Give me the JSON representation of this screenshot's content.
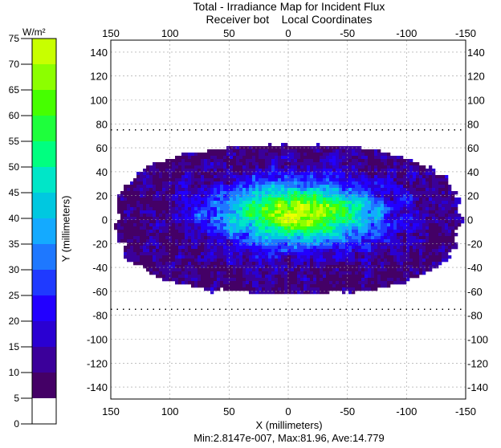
{
  "chart_data": {
    "type": "heatmap",
    "title": "Total - Irradiance Map for Incident Flux",
    "subtitle_receiver": "Receiver bot",
    "subtitle_coords": "Local Coordinates",
    "xlabel": "X (millimeters)",
    "ylabel": "Y (millimeters)",
    "xlim": [
      150,
      -150
    ],
    "ylim": [
      -150,
      150
    ],
    "x_ticks": [
      "150",
      "100",
      "50",
      "0",
      "-50",
      "-100",
      "-150"
    ],
    "x_tick_values": [
      150,
      100,
      50,
      0,
      -50,
      -100,
      -150
    ],
    "y_ticks": [
      "140",
      "120",
      "100",
      "80",
      "60",
      "40",
      "20",
      "0",
      "-20",
      "-40",
      "-60",
      "-80",
      "-100",
      "-120",
      "-140"
    ],
    "y_tick_values": [
      140,
      120,
      100,
      80,
      60,
      40,
      20,
      0,
      -20,
      -40,
      -60,
      -80,
      -100,
      -120,
      -140
    ],
    "receiver_bounds_y": [
      75,
      -75
    ],
    "flux_region": {
      "x_half_width": 145,
      "y_half_height": 62
    },
    "peak_center": {
      "x": -10,
      "y": 5
    },
    "stats": {
      "min": "2.8147e-007",
      "max": "81.96",
      "ave": "14.779"
    },
    "stats_line": "Min:2.8147e-007, Max:81.96, Ave:14.779",
    "colorbar": {
      "unit": "W/m²",
      "tick_labels": [
        "75",
        "70",
        "65",
        "60",
        "55",
        "50",
        "45",
        "40",
        "35",
        "30",
        "25",
        "20",
        "15",
        "10",
        "5",
        "0"
      ],
      "tick_values": [
        75,
        70,
        65,
        60,
        55,
        50,
        45,
        40,
        35,
        30,
        25,
        20,
        15,
        10,
        5,
        0
      ],
      "colors": [
        "#ffffff",
        "#440066",
        "#3b009a",
        "#2a00d2",
        "#2200ff",
        "#1f3aff",
        "#1e78ff",
        "#14aaff",
        "#00c8e0",
        "#00e6c8",
        "#00ff80",
        "#1eff3c",
        "#46ff00",
        "#8cff00",
        "#c8ff00",
        "#eeff00"
      ]
    }
  }
}
